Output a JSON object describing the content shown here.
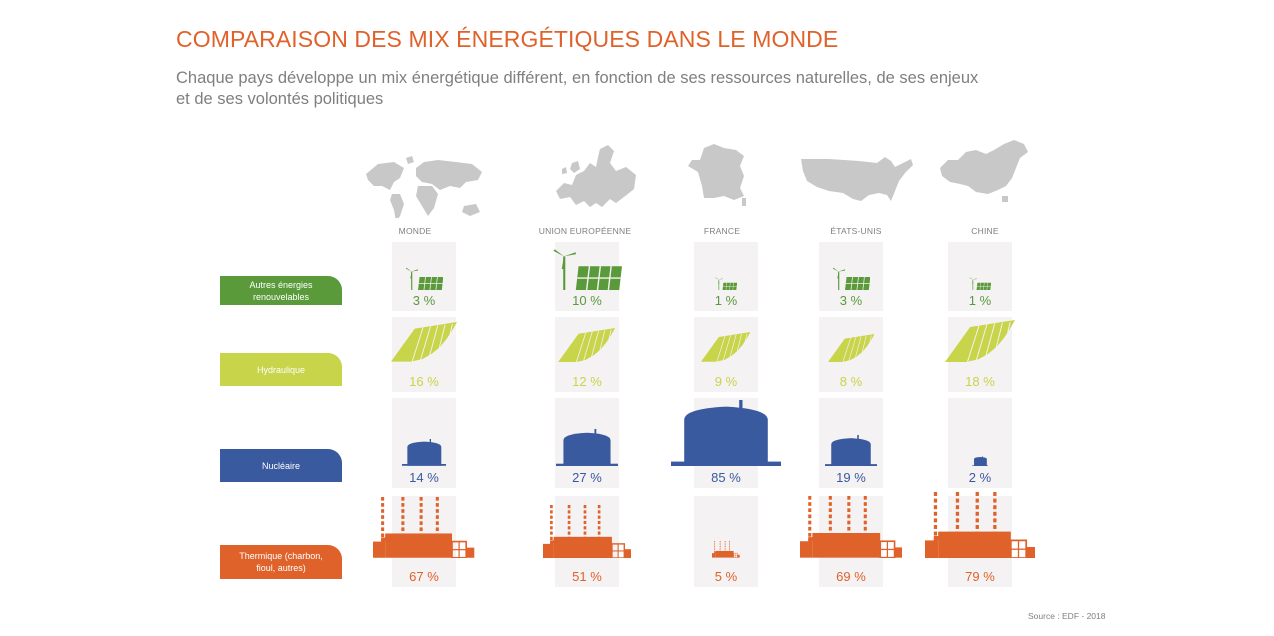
{
  "title": "COMPARAISON DES MIX ÉNERGÉTIQUES DANS LE MONDE",
  "subtitle": "Chaque pays développe un mix énergétique différent, en fonction de ses ressources naturelles, de ses enjeux et de ses volontés politiques",
  "source": "Source : EDF - 2018",
  "colors": {
    "renewables": "#5a9a3a",
    "hydro": "#c8d449",
    "nuclear": "#3a5aa0",
    "thermal": "#e0622b",
    "map": "#c8c8c8",
    "cell": "#f4f2f3"
  },
  "chart_data": {
    "type": "table",
    "title": "COMPARAISON DES MIX ÉNERGÉTIQUES DANS LE MONDE",
    "columns": [
      "MONDE",
      "UNION EUROPÉENNE",
      "FRANCE",
      "ÉTATS-UNIS",
      "CHINE"
    ],
    "map_icons": [
      "world-map-icon",
      "europe-map-icon",
      "france-map-icon",
      "usa-map-icon",
      "china-map-icon"
    ],
    "series": [
      {
        "name": "Autres énergies renouvelables",
        "values": [
          3,
          10,
          1,
          3,
          1
        ],
        "labels": [
          "3 %",
          "10 %",
          "1 %",
          "3 %",
          "1 %"
        ],
        "icon": "wind-solar-icon"
      },
      {
        "name": "Hydraulique",
        "values": [
          16,
          12,
          9,
          8,
          18
        ],
        "labels": [
          "16 %",
          "12 %",
          "9 %",
          "8 %",
          "18 %"
        ],
        "icon": "dam-icon"
      },
      {
        "name": "Nucléaire",
        "values": [
          14,
          27,
          85,
          19,
          2
        ],
        "labels": [
          "14 %",
          "27 %",
          "85 %",
          "19 %",
          "2 %"
        ],
        "icon": "reactor-icon"
      },
      {
        "name": "Thermique (charbon, fioul, autres)",
        "values": [
          67,
          51,
          5,
          69,
          79
        ],
        "labels": [
          "67 %",
          "51 %",
          "5 %",
          "69 %",
          "79 %"
        ],
        "icon": "power-plant-icon"
      }
    ]
  }
}
